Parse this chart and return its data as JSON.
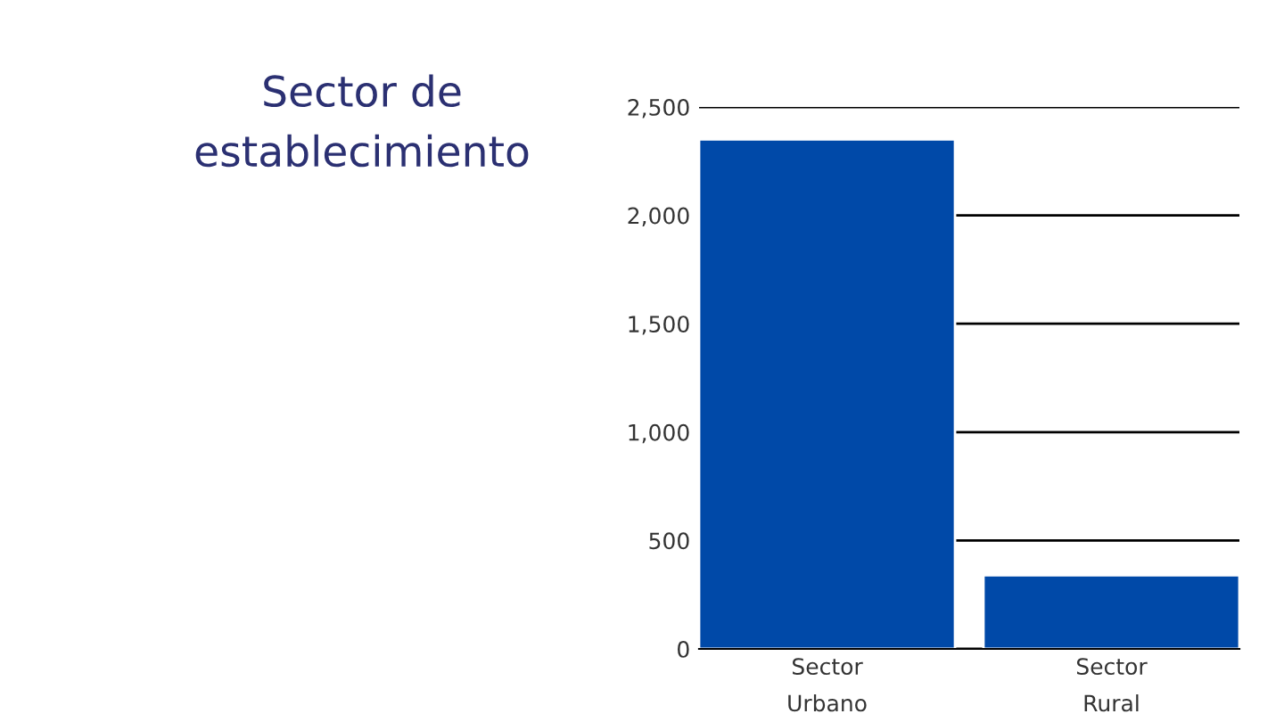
{
  "chart_data": {
    "type": "bar",
    "title": "Sector de\nestablecimiento",
    "categories": [
      "Sector\nUrbano",
      "Sector\nRural"
    ],
    "values": [
      2350,
      340
    ],
    "color": "#0049a8",
    "ylim": [
      0,
      2500
    ],
    "yticks": [
      {
        "value": 0,
        "label": "0"
      },
      {
        "value": 500,
        "label": "500"
      },
      {
        "value": 1000,
        "label": "1,000"
      },
      {
        "value": 1500,
        "label": "1,500"
      },
      {
        "value": 2000,
        "label": "2,000"
      },
      {
        "value": 2500,
        "label": "2,500"
      }
    ],
    "grid": "y"
  }
}
